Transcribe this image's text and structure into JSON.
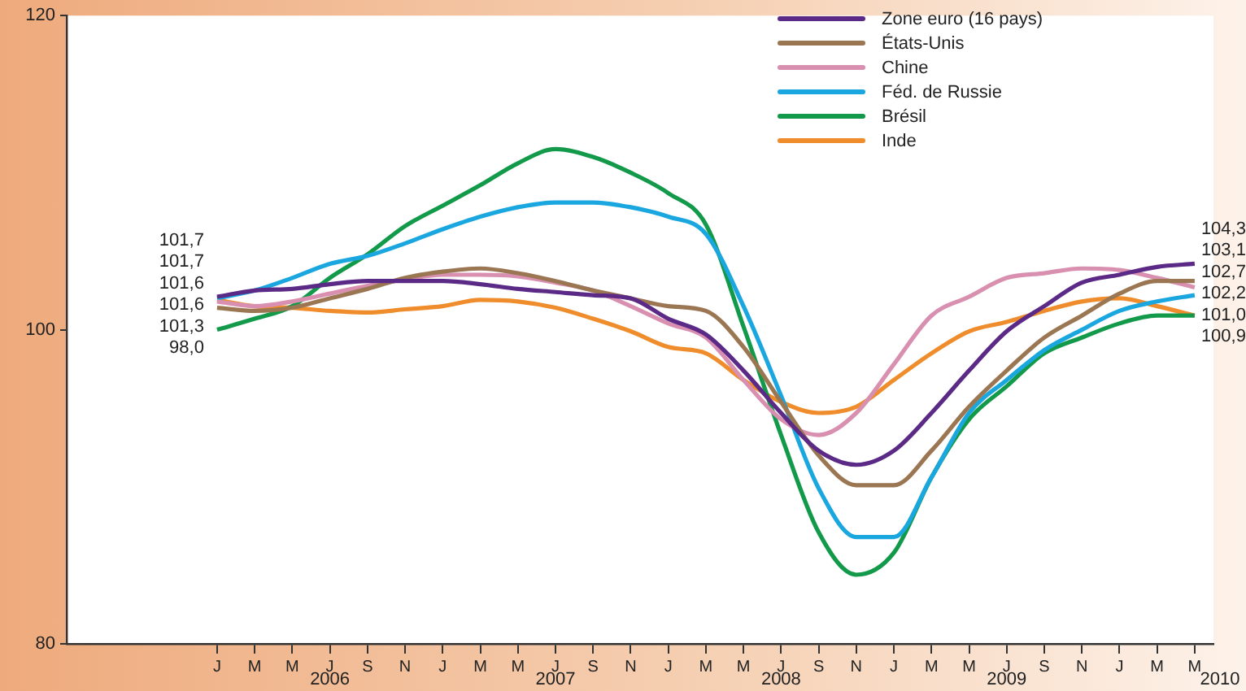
{
  "chart_data": {
    "type": "line",
    "categories": [
      "J",
      "M",
      "M",
      "J",
      "S",
      "N",
      "J",
      "M",
      "M",
      "J",
      "S",
      "N",
      "J",
      "M",
      "M",
      "J",
      "S",
      "N",
      "J",
      "M",
      "M",
      "J",
      "S",
      "N",
      "J",
      "M",
      "M"
    ],
    "series": [
      {
        "name": "Zone euro (16 pays)",
        "color": "#5b2a86",
        "values": [
          102.1,
          102.5,
          102.6,
          102.9,
          103.1,
          103.1,
          103.1,
          102.9,
          102.6,
          102.4,
          102.2,
          102.0,
          100.7,
          99.7,
          97.4,
          94.7,
          92.3,
          91.4,
          92.3,
          94.7,
          97.4,
          99.9,
          101.5,
          103.0,
          103.5,
          104.0,
          104.2
        ]
      },
      {
        "name": "États-Unis",
        "color": "#9b7652",
        "values": [
          101.4,
          101.2,
          101.4,
          102.0,
          102.6,
          103.3,
          103.7,
          103.9,
          103.6,
          103.1,
          102.5,
          102.0,
          101.5,
          101.2,
          98.9,
          95.4,
          92.0,
          90.1,
          90.1,
          92.3,
          95.1,
          97.4,
          99.5,
          100.9,
          102.3,
          103.1,
          103.1
        ]
      },
      {
        "name": "Chine",
        "color": "#d98fb0",
        "values": [
          101.8,
          101.5,
          101.8,
          102.3,
          102.8,
          103.2,
          103.5,
          103.5,
          103.4,
          103.0,
          102.5,
          101.5,
          100.4,
          99.5,
          96.8,
          94.3,
          93.3,
          94.7,
          97.8,
          100.9,
          102.1,
          103.3,
          103.6,
          103.9,
          103.8,
          103.3,
          102.7
        ]
      },
      {
        "name": "Féd. de Russie",
        "color": "#1aa6de",
        "values": [
          102.0,
          102.5,
          103.3,
          104.2,
          104.7,
          105.5,
          106.4,
          107.2,
          107.8,
          108.1,
          108.1,
          107.8,
          107.2,
          106.1,
          101.5,
          95.8,
          89.9,
          86.8,
          86.8,
          90.6,
          94.7,
          96.8,
          98.7,
          100.0,
          101.2,
          101.8,
          102.2
        ]
      },
      {
        "name": "Brésil",
        "color": "#12994a",
        "values": [
          100.0,
          100.7,
          101.5,
          103.3,
          104.8,
          106.6,
          107.9,
          109.2,
          110.6,
          111.5,
          111.0,
          110.0,
          108.7,
          106.7,
          100.2,
          93.3,
          87.1,
          84.4,
          85.8,
          90.6,
          94.3,
          96.4,
          98.5,
          99.5,
          100.4,
          100.9,
          100.9
        ]
      },
      {
        "name": "Inde",
        "color": "#ef8c2b",
        "values": [
          101.9,
          101.5,
          101.4,
          101.2,
          101.1,
          101.3,
          101.5,
          101.9,
          101.8,
          101.4,
          100.7,
          99.9,
          98.9,
          98.5,
          96.8,
          95.4,
          94.7,
          95.1,
          96.8,
          98.5,
          99.9,
          100.5,
          101.2,
          101.8,
          102.0,
          101.5,
          100.9
        ]
      }
    ],
    "ylim": [
      80,
      120
    ],
    "yticks": [
      80,
      100,
      120
    ],
    "grid": false,
    "legend": "top right",
    "marker": "none",
    "line_style": "solid",
    "annotations": [
      "101,7",
      "101,7",
      "101,6",
      "101,6",
      "101,3",
      "98,0",
      "104,3",
      "103,1",
      "102,7",
      "102,2",
      "101,0",
      "100,9",
      "2006",
      "2007",
      "2008",
      "2009",
      "2010"
    ]
  }
}
